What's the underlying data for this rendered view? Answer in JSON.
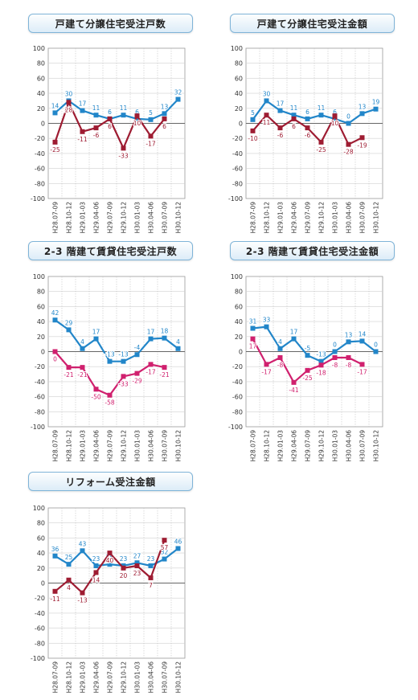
{
  "chart_data": [
    {
      "type": "line",
      "title": "戸建て分譲住宅受注戸数",
      "categories": [
        "H28.07-09",
        "H28.10-12",
        "H29.01-03",
        "H29.04-06",
        "H29.07-09",
        "H29.10-12",
        "H30.01-03",
        "H30.04-06",
        "H30.07-09",
        "H30.10-12"
      ],
      "ylim": [
        -100,
        100
      ],
      "yticks": [
        "100",
        "80",
        "60",
        "40",
        "20",
        "0",
        "-20",
        "-40",
        "-60",
        "-80",
        "-100"
      ],
      "grid": true,
      "series": [
        {
          "color": "#2286c9",
          "values": [
            14,
            30,
            17,
            11,
            6,
            11,
            6,
            5,
            13,
            32
          ]
        },
        {
          "color": "#9e1c32",
          "values": [
            -25,
            28,
            -11,
            -6,
            6,
            -33,
            10,
            -17,
            6,
            null
          ]
        }
      ]
    },
    {
      "type": "line",
      "title": "戸建て分譲住宅受注金額",
      "categories": [
        "H28.07-09",
        "H28.10-12",
        "H29.01-03",
        "H29.04-06",
        "H29.07-09",
        "H29.10-12",
        "H30.01-03",
        "H30.04-06",
        "H30.07-09",
        "H30.10-12"
      ],
      "ylim": [
        -100,
        100
      ],
      "yticks": [
        "100",
        "80",
        "60",
        "40",
        "20",
        "0",
        "-20",
        "-40",
        "-60",
        "-80",
        "-100"
      ],
      "grid": true,
      "series": [
        {
          "color": "#2286c9",
          "values": [
            5,
            30,
            17,
            11,
            6,
            11,
            6,
            0,
            13,
            19
          ]
        },
        {
          "color": "#9e1c32",
          "values": [
            -10,
            11,
            -6,
            6,
            -6,
            -25,
            10,
            -28,
            -19,
            null
          ]
        }
      ]
    },
    {
      "type": "line",
      "title": "2-3 階建て賃貸住宅受注戸数",
      "categories": [
        "H28.07-09",
        "H28.10-12",
        "H29.01-03",
        "H29.04-06",
        "H29.07-09",
        "H29.10-12",
        "H30.01-03",
        "H30.04-06",
        "H30.07-09",
        "H30.10-12"
      ],
      "ylim": [
        -100,
        100
      ],
      "yticks": [
        "100",
        "80",
        "60",
        "40",
        "20",
        "0",
        "-20",
        "-40",
        "-60",
        "-80",
        "-100"
      ],
      "grid": true,
      "series": [
        {
          "color": "#2286c9",
          "values": [
            42,
            29,
            4,
            17,
            -13,
            -13,
            -4,
            17,
            18,
            4
          ]
        },
        {
          "color": "#d0206e",
          "values": [
            0,
            -21,
            -21,
            -50,
            -58,
            -33,
            -29,
            -17,
            -21,
            null
          ]
        }
      ]
    },
    {
      "type": "line",
      "title": "2-3 階建て賃貸住宅受注金額",
      "categories": [
        "H28.07-09",
        "H28.10-12",
        "H29.01-03",
        "H29.04-06",
        "H29.07-09",
        "H29.10-12",
        "H30.01-03",
        "H30.04-06",
        "H30.07-09",
        "H30.10-12"
      ],
      "ylim": [
        -100,
        100
      ],
      "yticks": [
        "100",
        "80",
        "60",
        "40",
        "20",
        "0",
        "-20",
        "-40",
        "-60",
        "-80",
        "-100"
      ],
      "grid": true,
      "series": [
        {
          "color": "#2286c9",
          "values": [
            31,
            33,
            4,
            17,
            -5,
            -13,
            0,
            13,
            14,
            0
          ]
        },
        {
          "color": "#d0206e",
          "values": [
            17,
            -17,
            -8,
            -41,
            -25,
            -18,
            -8,
            -8,
            -17,
            null
          ]
        }
      ]
    },
    {
      "type": "line",
      "title": "リフォーム受注金額",
      "categories": [
        "H28.07-09",
        "H28.10-12",
        "H29.01-03",
        "H29.04-06",
        "H29.07-09",
        "H29.10-12",
        "H30.01-03",
        "H30.04-06",
        "H30.07-09",
        "H30.10-12"
      ],
      "ylim": [
        -100,
        100
      ],
      "yticks": [
        "100",
        "80",
        "60",
        "40",
        "20",
        "0",
        "-20",
        "-40",
        "-60",
        "-80",
        "-100"
      ],
      "grid": true,
      "series": [
        {
          "color": "#2286c9",
          "values": [
            36,
            25,
            43,
            23,
            25,
            23,
            27,
            23,
            32,
            46
          ]
        },
        {
          "color": "#9e1c32",
          "values": [
            -11,
            4,
            -13,
            14,
            40,
            20,
            23,
            7,
            57,
            null
          ]
        }
      ]
    }
  ]
}
